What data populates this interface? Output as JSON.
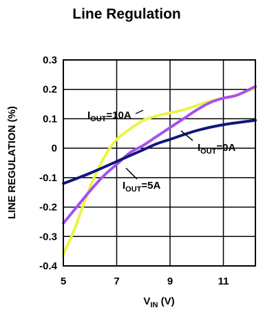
{
  "chart_data": {
    "type": "line",
    "title": "Line Regulation",
    "xlabel": {
      "main": "V",
      "sub": "IN",
      "unit": " (V)"
    },
    "ylabel": "LINE REGULATION (%)",
    "xlim": [
      5,
      12.2
    ],
    "ylim": [
      -0.4,
      0.3
    ],
    "xticks": [
      5,
      7,
      9,
      11
    ],
    "xtick_labels": [
      "5",
      "7",
      "9",
      "11"
    ],
    "yticks": [
      0.3,
      0.2,
      0.1,
      0,
      -0.1,
      -0.2,
      -0.3,
      -0.4
    ],
    "ytick_labels": [
      "0.3",
      "0.2",
      "0.1",
      "0",
      "-0.1",
      "-0.2",
      "-0.3",
      "-0.4"
    ],
    "grid": true,
    "series": [
      {
        "name": "IOUT=10A",
        "label_main": "I",
        "label_sub": "OUT",
        "label_rest": "=10A",
        "color": "#eaf542",
        "x": [
          5.0,
          5.4,
          5.8,
          6.2,
          6.6,
          7.0,
          7.5,
          8.0,
          8.5,
          9.0,
          9.5,
          10.0,
          10.5,
          11.0,
          11.5,
          12.2
        ],
        "y": [
          -0.36,
          -0.28,
          -0.18,
          -0.09,
          -0.02,
          0.03,
          0.065,
          0.095,
          0.11,
          0.12,
          0.13,
          0.145,
          0.16,
          0.17,
          0.18,
          0.205
        ]
      },
      {
        "name": "IOUT=5A",
        "label_main": "I",
        "label_sub": "OUT",
        "label_rest": "=5A",
        "color": "#a550f0",
        "x": [
          5.0,
          5.5,
          6.0,
          6.5,
          7.0,
          7.5,
          8.0,
          8.5,
          9.0,
          9.5,
          10.0,
          10.5,
          11.0,
          11.5,
          12.2
        ],
        "y": [
          -0.255,
          -0.2,
          -0.145,
          -0.095,
          -0.055,
          -0.015,
          0.01,
          0.04,
          0.07,
          0.1,
          0.13,
          0.155,
          0.17,
          0.18,
          0.21
        ]
      },
      {
        "name": "IOUT=0A",
        "label_main": "I",
        "label_sub": "OUT",
        "label_rest": "=0A",
        "color": "#12157a",
        "x": [
          5.0,
          6.0,
          7.0,
          8.0,
          8.5,
          9.0,
          10.0,
          11.0,
          12.2
        ],
        "y": [
          -0.12,
          -0.085,
          -0.045,
          -0.005,
          0.015,
          0.03,
          0.06,
          0.08,
          0.095
        ]
      }
    ]
  }
}
